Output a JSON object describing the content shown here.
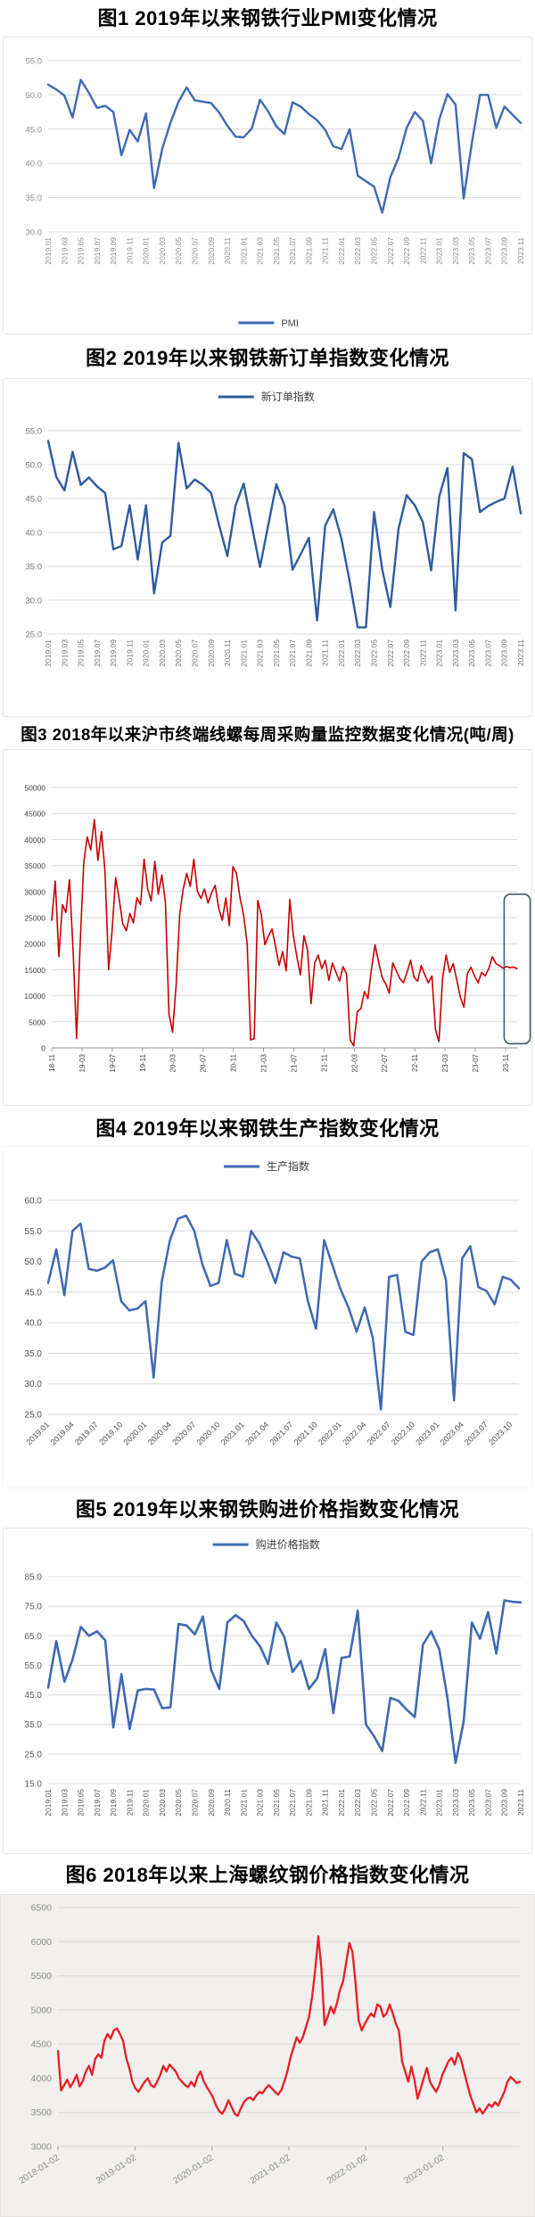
{
  "page": {
    "background": "#ffffff"
  },
  "colors": {
    "blue_line": "#3E69B2",
    "dark_blue_legend": "#2E5B9F",
    "red_line_fig3": "#C80000",
    "red_line_fig6": "#EC1C24",
    "grid": "#D9D9D9",
    "annotation_box": "#3D5A66"
  },
  "chart_data": [
    {
      "id": "fig1",
      "type": "line",
      "title": "图1 2019年以来钢铁行业PMI变化情况",
      "legend": {
        "label": "PMI",
        "position": "bottom"
      },
      "ylim": [
        30,
        55
      ],
      "ytick_step": 5,
      "ytick_decimals": 1,
      "grid": true,
      "grid_color": "#D9D9D9",
      "tick_color": "#8C8C8C",
      "x_tick_every": 2,
      "x_label_rotation": -90,
      "x_tick_labels": [
        "2019.01",
        "2019.03",
        "2019.05",
        "2019.07",
        "2019.09",
        "2019.11",
        "2020.01",
        "2020.03",
        "2020.05",
        "2020.07",
        "2020.09",
        "2020.11",
        "2021.01",
        "2021.03",
        "2021.05",
        "2021.07",
        "2021.09",
        "2021.11",
        "2022.01",
        "2022.03",
        "2022.05",
        "2022.07",
        "2022.09",
        "2022.11",
        "2023.01",
        "2023.03",
        "2023.05",
        "2023.07",
        "2023.09",
        "2023.11"
      ],
      "series": [
        {
          "name": "PMI",
          "color": "#3E69B2",
          "values": [
            51.5,
            50.8,
            49.9,
            46.7,
            52.2,
            50.3,
            48.1,
            48.4,
            47.5,
            41.2,
            44.9,
            43.2,
            47.3,
            36.4,
            42.1,
            45.9,
            49.0,
            51.1,
            49.2,
            49.0,
            48.8,
            47.4,
            45.5,
            43.9,
            43.8,
            45.1,
            49.3,
            47.6,
            45.4,
            44.3,
            48.9,
            48.3,
            47.2,
            46.3,
            44.9,
            42.5,
            42.1,
            45.0,
            38.2,
            37.4,
            36.6,
            32.8,
            38.0,
            40.8,
            45.2,
            47.5,
            46.2,
            40.0,
            46.4,
            50.1,
            48.6,
            34.9,
            43.0,
            50.0,
            50.0,
            45.2,
            48.3,
            47.1,
            45.9
          ]
        }
      ]
    },
    {
      "id": "fig2",
      "type": "line",
      "title": "图2 2019年以来钢铁新订单指数变化情况",
      "legend": {
        "label": "新订单指数",
        "position": "top"
      },
      "ylim": [
        25,
        55
      ],
      "ytick_step": 5,
      "ytick_decimals": 1,
      "grid": true,
      "grid_color": "#D9D9D9",
      "tick_color": "#737373",
      "x_tick_every": 2,
      "x_label_rotation": -90,
      "x_tick_labels": [
        "2019.01",
        "2019.03",
        "2019.05",
        "2019.07",
        "2019.09",
        "2019.11",
        "2020.01",
        "2020.03",
        "2020.05",
        "2020.07",
        "2020.09",
        "2020.11",
        "2021.01",
        "2021.03",
        "2021.05",
        "2021.07",
        "2021.09",
        "2021.11",
        "2022.01",
        "2022.03",
        "2022.05",
        "2022.07",
        "2022.09",
        "2022.11",
        "2023.01",
        "2023.03",
        "2023.05",
        "2023.07",
        "2023.09",
        "2023.11"
      ],
      "series": [
        {
          "name": "新订单指数",
          "color": "#2E5B9F",
          "values": [
            53.5,
            48.2,
            46.2,
            51.9,
            47.0,
            48.1,
            46.8,
            45.8,
            37.5,
            38.0,
            44.0,
            36.0,
            44.0,
            31.0,
            38.5,
            39.5,
            53.2,
            46.5,
            47.8,
            47.0,
            45.8,
            41.0,
            36.5,
            44.0,
            47.2,
            41.0,
            34.9,
            41.0,
            47.1,
            44.0,
            34.5,
            36.8,
            39.2,
            27.0,
            41.0,
            43.4,
            39.0,
            32.8,
            26.0,
            26.0,
            43.0,
            34.5,
            29.0,
            40.5,
            45.5,
            44.0,
            41.5,
            34.4,
            45.3,
            49.5,
            28.5,
            51.7,
            50.8,
            43.0,
            43.9,
            44.5,
            45.0,
            49.7,
            42.8
          ]
        }
      ]
    },
    {
      "id": "fig3",
      "type": "line",
      "title": "图3 2018年以来沪市终端线螺每周采购量监控数据变化情况(吨/周)",
      "legend": null,
      "ylim": [
        0,
        50000
      ],
      "ytick_step": 5000,
      "ytick_decimals": 0,
      "grid": true,
      "grid_color": "#D9D9D9",
      "tick_color": "#404040",
      "x_tick_frac_step": 0.065,
      "x_label_rotation": -90,
      "x_tick_labels": [
        "18-11",
        "19-03",
        "19-07",
        "19-11",
        "20-03",
        "20-07",
        "20-11",
        "21-03",
        "21-07",
        "21-11",
        "22-03",
        "22-07",
        "22-11",
        "23-03",
        "23-07",
        "23-11"
      ],
      "annotation_box": {
        "x_frac_start": 0.972,
        "x_frac_end": 1.028,
        "y_top": 29500,
        "y_bottom": 800,
        "color": "#3D5A66"
      },
      "series": [
        {
          "name": "",
          "color": "#C80000",
          "values": [
            24500,
            32000,
            17500,
            27500,
            26000,
            32300,
            19000,
            1800,
            20000,
            35500,
            40500,
            38000,
            43800,
            36000,
            41500,
            33800,
            15000,
            22500,
            32700,
            28500,
            23800,
            22500,
            25800,
            24000,
            28800,
            27500,
            36200,
            30500,
            28200,
            35800,
            29500,
            33200,
            28000,
            6500,
            3000,
            12000,
            25500,
            30500,
            33500,
            31000,
            36200,
            30000,
            28700,
            30500,
            27800,
            29800,
            31200,
            26800,
            24500,
            28800,
            23500,
            34800,
            33500,
            28800,
            25500,
            20000,
            1500,
            1800,
            28300,
            25500,
            19800,
            21500,
            22800,
            19500,
            15800,
            18500,
            14800,
            28500,
            21500,
            17500,
            14000,
            21500,
            18800,
            8500,
            16300,
            17800,
            15200,
            16800,
            13000,
            16300,
            14500,
            12800,
            15600,
            14200,
            1500,
            400,
            7000,
            7500,
            10800,
            9500,
            15200,
            19800,
            16500,
            13500,
            12300,
            10500,
            16300,
            14800,
            13300,
            12500,
            14500,
            16800,
            13500,
            12800,
            15800,
            14000,
            12500,
            13800,
            3500,
            1200,
            13300,
            17800,
            14500,
            16200,
            13000,
            9800,
            7800,
            14300,
            15500,
            13800,
            12500,
            14500,
            13800,
            15200,
            17500,
            16200,
            15800,
            15300,
            15600,
            15400,
            15500,
            15200
          ]
        }
      ]
    },
    {
      "id": "fig4",
      "type": "line",
      "title": "图4 2019年以来钢铁生产指数变化情况",
      "legend": {
        "label": "生产指数",
        "position": "top"
      },
      "ylim": [
        25,
        60
      ],
      "ytick_step": 5,
      "ytick_decimals": 1,
      "grid": true,
      "grid_color": "#D9D9D9",
      "tick_color": "#4D4D4D",
      "x_tick_every": 3,
      "x_label_rotation": -45,
      "x_tick_labels": [
        "2019.01",
        "2019.04",
        "2019.07",
        "2019.10",
        "2020.01",
        "2020.04",
        "2020.07",
        "2020.10",
        "2021.01",
        "2021.04",
        "2021.07",
        "2021.10",
        "2022.01",
        "2022.04",
        "2022.07",
        "2022.10",
        "2023.01",
        "2023.04",
        "2023.07",
        "2023.10"
      ],
      "series": [
        {
          "name": "生产指数",
          "color": "#3E69B2",
          "values": [
            46.5,
            52.0,
            44.5,
            55.0,
            56.2,
            48.8,
            48.5,
            49.0,
            50.2,
            43.5,
            42.0,
            42.3,
            43.5,
            31.0,
            46.7,
            53.5,
            57.0,
            57.5,
            55.0,
            49.5,
            46.0,
            46.5,
            53.5,
            48.0,
            47.5,
            55.0,
            53.0,
            50.0,
            46.5,
            51.5,
            50.8,
            50.5,
            43.5,
            39.0,
            53.5,
            49.5,
            45.5,
            42.5,
            38.5,
            42.5,
            37.5,
            25.8,
            47.5,
            47.8,
            38.5,
            38.0,
            50.0,
            51.5,
            52.0,
            47.0,
            27.3,
            50.5,
            52.5,
            45.8,
            45.2,
            43.0,
            47.5,
            47.0,
            45.6
          ]
        }
      ]
    },
    {
      "id": "fig5",
      "type": "line",
      "title": "图5 2019年以来钢铁购进价格指数变化情况",
      "legend": {
        "label": "购进价格指数",
        "position": "top"
      },
      "ylim": [
        15,
        85
      ],
      "ytick_step": 10,
      "ytick_decimals": 1,
      "grid": true,
      "grid_color": "#D9D9D9",
      "tick_color": "#595959",
      "x_tick_every": 2,
      "x_label_rotation": -90,
      "x_tick_labels": [
        "2019.01",
        "2019.03",
        "2019.05",
        "2019.07",
        "2019.09",
        "2019.11",
        "2020.01",
        "2020.03",
        "2020.05",
        "2020.07",
        "2020.09",
        "2020.11",
        "2021.01",
        "2021.03",
        "2021.05",
        "2021.07",
        "2021.09",
        "2021.11",
        "2022.01",
        "2022.03",
        "2022.05",
        "2022.07",
        "2022.09",
        "2022.11",
        "2023.01",
        "2023.03",
        "2023.05",
        "2023.07",
        "2023.09",
        "2023.11"
      ],
      "series": [
        {
          "name": "购进价格指数",
          "color": "#3E69B2",
          "values": [
            47.5,
            63.2,
            49.5,
            57.0,
            68.0,
            65.0,
            66.5,
            63.5,
            34.0,
            52.0,
            33.5,
            46.5,
            47.0,
            46.8,
            40.5,
            40.8,
            69.0,
            68.5,
            65.5,
            71.5,
            53.5,
            47.0,
            69.5,
            72.0,
            70.0,
            65.0,
            61.5,
            55.5,
            69.5,
            64.5,
            52.8,
            56.5,
            47.0,
            50.5,
            60.5,
            38.8,
            57.5,
            58.0,
            73.5,
            35.0,
            31.0,
            26.0,
            44.0,
            43.0,
            40.0,
            37.5,
            62.0,
            66.5,
            60.5,
            44.0,
            22.0,
            36.0,
            69.5,
            64.0,
            73.0,
            59.0,
            77.0,
            76.5,
            76.3
          ]
        }
      ]
    },
    {
      "id": "fig6",
      "type": "line",
      "title": "图6 2018年以来上海螺纹钢价格指数变化情况",
      "legend": null,
      "background": "#F1F0EE",
      "ylim": [
        3000,
        6500
      ],
      "ytick_step": 500,
      "ytick_decimals": 0,
      "grid": true,
      "grid_color": "#DAD8D5",
      "tick_color": "#8C8C8C",
      "x_tick_frac_step": 0.16667,
      "x_label_rotation": -33,
      "x_tick_labels": [
        "2018-01-02",
        "2019-01-02",
        "2020-01-02",
        "2021-01-02",
        "2022-01-02",
        "2023-01-02"
      ],
      "series": [
        {
          "name": "",
          "color": "#EC1C24",
          "values": [
            4400,
            3820,
            3900,
            3980,
            3870,
            3950,
            4050,
            3880,
            3960,
            4100,
            4180,
            4050,
            4280,
            4350,
            4300,
            4550,
            4650,
            4580,
            4700,
            4730,
            4650,
            4550,
            4300,
            4150,
            3950,
            3850,
            3800,
            3880,
            3950,
            4000,
            3900,
            3870,
            3950,
            4050,
            4180,
            4100,
            4200,
            4150,
            4100,
            4000,
            3950,
            3900,
            3870,
            3950,
            3880,
            4020,
            4100,
            3960,
            3870,
            3800,
            3720,
            3600,
            3520,
            3480,
            3560,
            3680,
            3580,
            3480,
            3450,
            3560,
            3650,
            3700,
            3720,
            3680,
            3750,
            3800,
            3780,
            3850,
            3900,
            3850,
            3800,
            3760,
            3820,
            3950,
            4100,
            4300,
            4450,
            4600,
            4520,
            4600,
            4750,
            4900,
            5200,
            5600,
            6080,
            5600,
            4780,
            4900,
            5050,
            4950,
            5100,
            5300,
            5420,
            5700,
            5980,
            5850,
            5400,
            4850,
            4700,
            4800,
            4880,
            4950,
            4900,
            5080,
            5050,
            4900,
            4950,
            5080,
            4950,
            4800,
            4700,
            4250,
            4100,
            3950,
            4170,
            3980,
            3700,
            3850,
            4000,
            4150,
            3950,
            3870,
            3800,
            3900,
            4050,
            4150,
            4250,
            4300,
            4200,
            4370,
            4280,
            4100,
            3920,
            3750,
            3620,
            3500,
            3560,
            3480,
            3550,
            3620,
            3580,
            3650,
            3600,
            3700,
            3800,
            3950,
            4020,
            3980,
            3930,
            3950
          ]
        }
      ]
    }
  ]
}
